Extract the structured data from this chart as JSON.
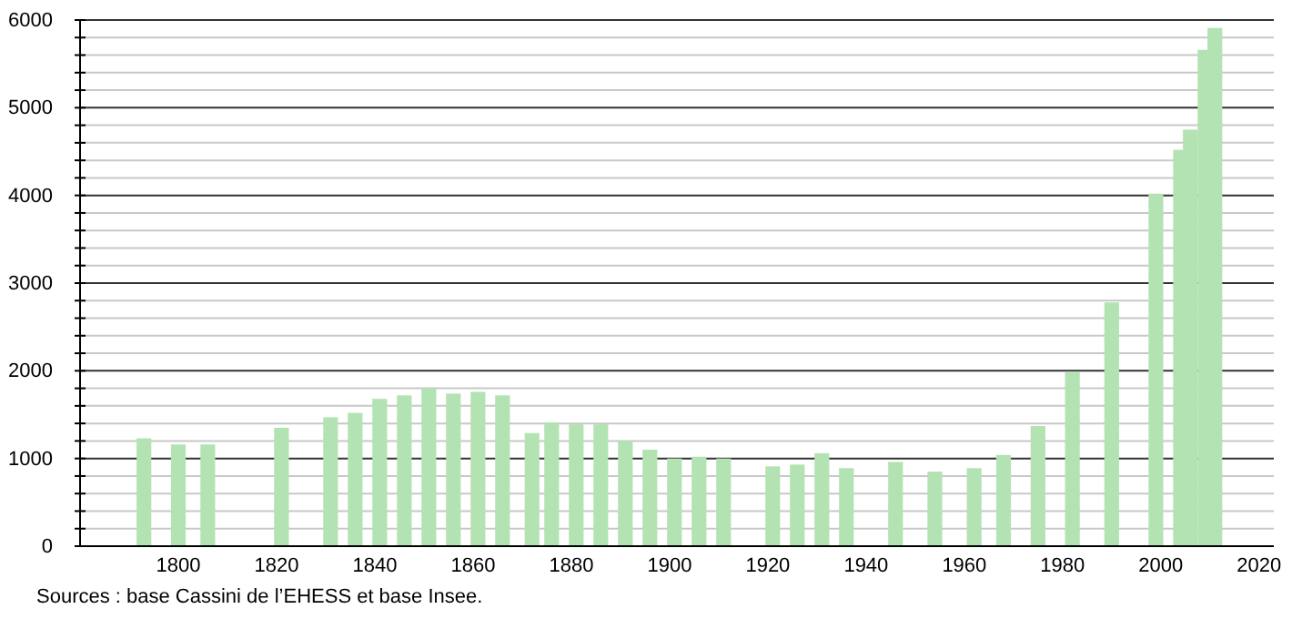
{
  "chart_data": {
    "type": "bar",
    "color": "#b3e3b3",
    "x": [
      1793,
      1800,
      1806,
      1821,
      1831,
      1836,
      1841,
      1846,
      1851,
      1856,
      1861,
      1866,
      1872,
      1876,
      1881,
      1886,
      1891,
      1896,
      1901,
      1906,
      1911,
      1921,
      1926,
      1931,
      1936,
      1946,
      1954,
      1962,
      1968,
      1975,
      1982,
      1990,
      1999,
      2004,
      2006,
      2009,
      2011
    ],
    "values": [
      1230,
      1160,
      1160,
      1350,
      1470,
      1520,
      1680,
      1720,
      1800,
      1740,
      1760,
      1720,
      1290,
      1410,
      1390,
      1390,
      1200,
      1100,
      1000,
      1020,
      1000,
      910,
      930,
      1060,
      890,
      960,
      850,
      890,
      1040,
      1370,
      1990,
      2780,
      4020,
      4520,
      4750,
      5660,
      5910
    ],
    "xlim": [
      1780,
      2023
    ],
    "xticks": [
      1800,
      1820,
      1840,
      1860,
      1880,
      1900,
      1920,
      1940,
      1960,
      1980,
      2000,
      2020
    ],
    "ylim": [
      0,
      6000
    ],
    "yticks": [
      0,
      {
        "value": 200,
        "label": null
      },
      {
        "value": 400,
        "label": null
      },
      {
        "value": 600,
        "label": null
      },
      {
        "value": 800,
        "label": null
      },
      1000,
      {
        "value": 1200,
        "label": null
      },
      {
        "value": 1400,
        "label": null
      },
      {
        "value": 1600,
        "label": null
      },
      {
        "value": 1800,
        "label": null
      },
      2000,
      {
        "value": 2200,
        "label": null
      },
      {
        "value": 2400,
        "label": null
      },
      {
        "value": 2600,
        "label": null
      },
      {
        "value": 2800,
        "label": null
      },
      3000,
      {
        "value": 3200,
        "label": null
      },
      {
        "value": 3400,
        "label": null
      },
      {
        "value": 3600,
        "label": null
      },
      {
        "value": 3800,
        "label": null
      },
      4000,
      {
        "value": 4200,
        "label": null
      },
      {
        "value": 4400,
        "label": null
      },
      {
        "value": 4600,
        "label": null
      },
      {
        "value": 4800,
        "label": null
      },
      5000,
      {
        "value": 5200,
        "label": null
      },
      {
        "value": 5400,
        "label": null
      },
      {
        "value": 5600,
        "label": null
      },
      {
        "value": 5800,
        "label": null
      },
      6000
    ],
    "grid": true,
    "annotations": [
      "Sources : base Cassini de l’EHESS et base Insee."
    ]
  }
}
